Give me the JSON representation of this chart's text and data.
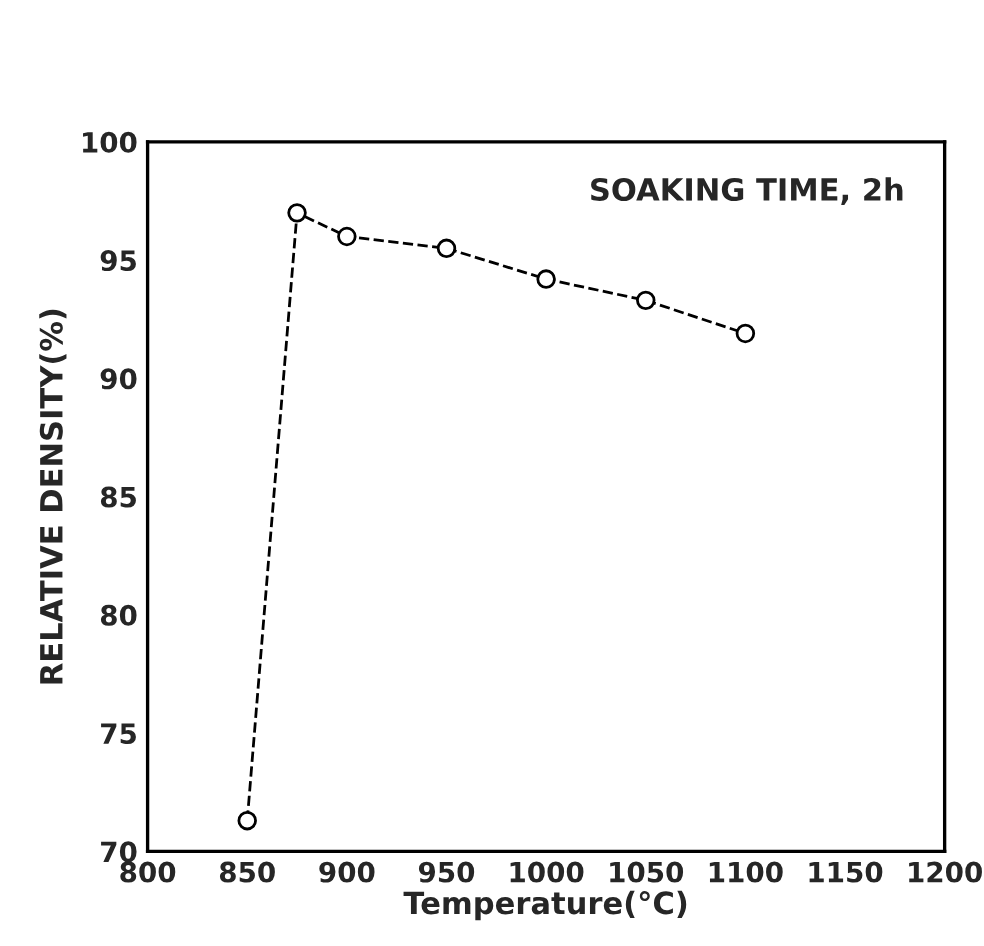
{
  "chart_data": {
    "type": "line",
    "xlabel": "Temperature(°C)",
    "ylabel": "RELATIVE DENSITY(%)",
    "annotations": [
      "SOAKING TIME, 2h"
    ],
    "x": [
      850,
      875,
      900,
      950,
      1000,
      1050,
      1100
    ],
    "series": [
      {
        "color": "#000000",
        "values": [
          71.3,
          97.0,
          96.0,
          95.5,
          94.2,
          93.3,
          91.9
        ]
      }
    ],
    "xlim": [
      800,
      1200
    ],
    "xticks": [
      800,
      850,
      900,
      950,
      1000,
      1050,
      1100,
      1150,
      1200
    ],
    "ylim": [
      70,
      100
    ],
    "yticks": [
      70,
      75,
      80,
      85,
      90,
      95,
      100
    ],
    "marker": "circle",
    "line_style": "dashed",
    "grid": false,
    "legend": false
  }
}
